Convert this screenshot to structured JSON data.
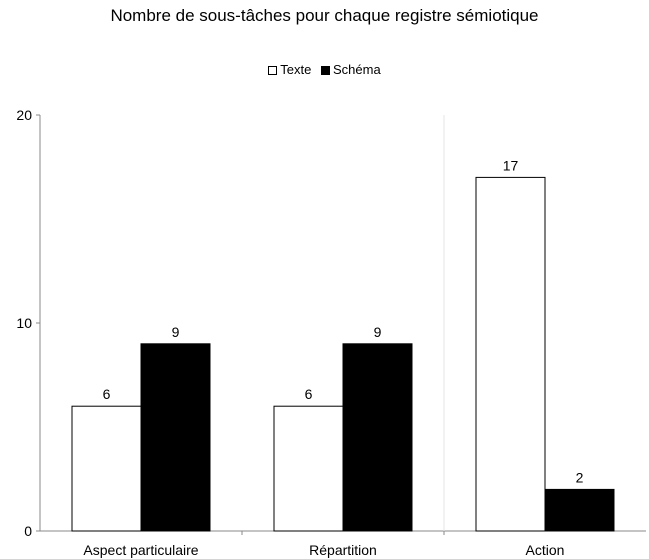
{
  "chart_data": {
    "type": "bar",
    "title": "Nombre de sous-tâches pour chaque registre sémiotique",
    "xlabel": "",
    "ylabel": "",
    "categories": [
      "Aspect particulaire",
      "Répartition",
      "Action"
    ],
    "series": [
      {
        "name": "Texte",
        "values": [
          6,
          6,
          17
        ],
        "color": "#ffffff",
        "stroke": "#000000"
      },
      {
        "name": "Schéma",
        "values": [
          9,
          9,
          2
        ],
        "color": "#000000",
        "stroke": "#000000"
      }
    ],
    "ylim": [
      0,
      20
    ],
    "yticks": [
      0,
      10,
      20
    ],
    "data_labels": true,
    "legend_position": "top-center",
    "grid": false
  }
}
